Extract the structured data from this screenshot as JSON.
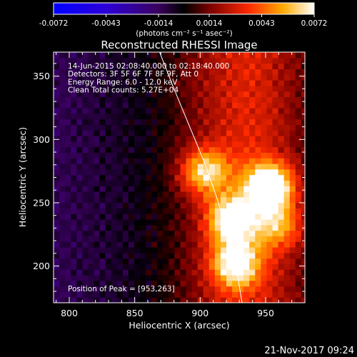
{
  "chart_data": {
    "type": "heatmap",
    "title": "Reconstructed RHESSI Image",
    "xlabel": "Heliocentric X (arcsec)",
    "ylabel": "Heliocentric Y (arcsec)",
    "xlim": [
      788,
      980
    ],
    "ylim": [
      171,
      369
    ],
    "x_ticks": [
      800,
      850,
      900,
      950
    ],
    "y_ticks": [
      200,
      250,
      300,
      350
    ],
    "grid": false,
    "annotations": [
      "14-Jun-2015 02:08:40.000 to 02:18:40.000",
      "Detectors: 3F 5F 6F 7F 8F 9F, Att 0",
      "Energy Range: 6.0 - 12.0 keV",
      "Clean     Total counts: 5.27E+04"
    ],
    "peak_label": "Position of Peak = [953,263]",
    "peak": [
      953,
      263
    ],
    "sources": [
      {
        "x": 953,
        "y": 263,
        "intensity": 0.0072
      },
      {
        "x": 924,
        "y": 237,
        "intensity": 0.0058
      },
      {
        "x": 927,
        "y": 202,
        "intensity": 0.0055
      },
      {
        "x": 903,
        "y": 275,
        "intensity": 0.0049
      },
      {
        "x": 960,
        "y": 232,
        "intensity": 0.0036
      }
    ],
    "colorbar": {
      "range": [
        -0.0072,
        0.0072
      ],
      "ticks": [
        "-0.0072",
        "-0.0043",
        "-0.0014",
        "0.0014",
        "0.0043",
        "0.0072"
      ],
      "label": "(photons cm⁻² s⁻¹ asec⁻²)"
    },
    "limb_arc": [
      [
        869,
        369
      ],
      [
        880,
        340
      ],
      [
        892,
        310
      ],
      [
        904,
        280
      ],
      [
        914,
        250
      ],
      [
        922,
        220
      ],
      [
        929,
        190
      ],
      [
        932,
        171
      ]
    ]
  },
  "date_stamp": "21-Nov-2017 09:24"
}
